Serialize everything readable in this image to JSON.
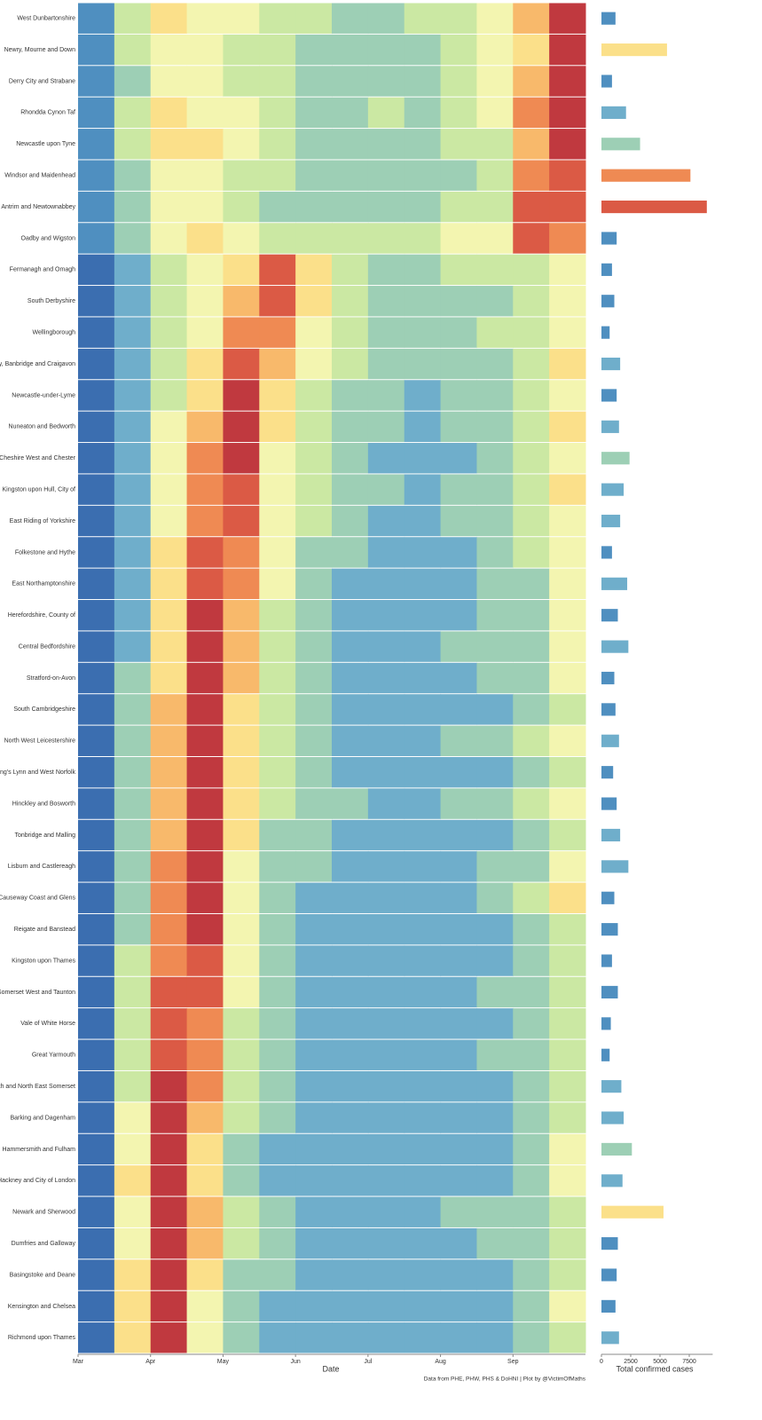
{
  "chart_data": [
    {
      "type": "heatmap",
      "x": [
        "Mar",
        null,
        "Apr",
        null,
        "May",
        null,
        "Jun",
        null,
        "Jul",
        null,
        "Aug",
        null,
        "Sep",
        null
      ],
      "rows": [
        "West Dunbartonshire",
        "Newry, Mourne and Down",
        "Derry City and Strabane",
        "Rhondda Cynon Taf",
        "Newcastle upon Tyne",
        "Windsor and Maidenhead",
        "Antrim and Newtownabbey",
        "Oadby and Wigston",
        "Fermanagh and Omagh",
        "South Derbyshire",
        "Wellingborough",
        "Armagh City, Banbridge and Craigavon",
        "Newcastle-under-Lyme",
        "Nuneaton and Bedworth",
        "Cheshire West and Chester",
        "Kingston upon Hull, City of",
        "East Riding of Yorkshire",
        "Folkestone and Hythe",
        "East Northamptonshire",
        "Herefordshire, County of",
        "Central Bedfordshire",
        "Stratford-on-Avon",
        "South Cambridgeshire",
        "North West Leicestershire",
        "King's Lynn and West Norfolk",
        "Hinckley and Bosworth",
        "Tonbridge and Malling",
        "Lisburn and Castlereagh",
        "Causeway Coast and Glens",
        "Reigate and Banstead",
        "Kingston upon Thames",
        "Somerset West and Taunton",
        "Vale of White Horse",
        "Great Yarmouth",
        "Bath and North East Somerset",
        "Barking and Dagenham",
        "Hammersmith and Fulham",
        "Hackney and City of London",
        "Newark and Sherwood",
        "Dumfries and Galloway",
        "Basingstoke and Deane",
        "Kensington and Chelsea",
        "Richmond upon Thames"
      ],
      "values": [
        [
          1,
          4,
          6,
          5,
          5,
          4,
          4,
          3,
          3,
          4,
          4,
          5,
          7,
          10
        ],
        [
          1,
          4,
          5,
          5,
          4,
          4,
          3,
          3,
          3,
          3,
          4,
          5,
          6,
          10
        ],
        [
          1,
          3,
          5,
          5,
          4,
          4,
          3,
          3,
          3,
          3,
          4,
          5,
          7,
          10
        ],
        [
          1,
          4,
          6,
          5,
          5,
          4,
          3,
          3,
          4,
          3,
          4,
          5,
          8,
          10
        ],
        [
          1,
          4,
          6,
          6,
          5,
          4,
          3,
          3,
          3,
          3,
          4,
          4,
          7,
          10
        ],
        [
          1,
          3,
          5,
          5,
          4,
          4,
          3,
          3,
          3,
          3,
          3,
          4,
          8,
          9
        ],
        [
          1,
          3,
          5,
          5,
          4,
          3,
          3,
          3,
          3,
          3,
          4,
          4,
          9,
          9
        ],
        [
          1,
          3,
          5,
          6,
          5,
          4,
          4,
          4,
          4,
          4,
          5,
          5,
          9,
          8
        ],
        [
          0,
          2,
          4,
          5,
          6,
          9,
          6,
          4,
          3,
          3,
          4,
          4,
          4,
          5
        ],
        [
          0,
          2,
          4,
          5,
          7,
          9,
          6,
          4,
          3,
          3,
          3,
          3,
          4,
          5
        ],
        [
          0,
          2,
          4,
          5,
          8,
          8,
          5,
          4,
          3,
          3,
          3,
          4,
          4,
          5
        ],
        [
          0,
          2,
          4,
          6,
          9,
          7,
          5,
          4,
          3,
          3,
          3,
          3,
          4,
          6
        ],
        [
          0,
          2,
          4,
          6,
          10,
          6,
          4,
          3,
          3,
          2,
          3,
          3,
          4,
          5
        ],
        [
          0,
          2,
          5,
          7,
          10,
          6,
          4,
          3,
          3,
          2,
          3,
          3,
          4,
          6
        ],
        [
          0,
          2,
          5,
          8,
          10,
          5,
          4,
          3,
          2,
          2,
          2,
          3,
          4,
          5
        ],
        [
          0,
          2,
          5,
          8,
          9,
          5,
          4,
          3,
          3,
          2,
          3,
          3,
          4,
          6
        ],
        [
          0,
          2,
          5,
          8,
          9,
          5,
          4,
          3,
          2,
          2,
          3,
          3,
          4,
          5
        ],
        [
          0,
          2,
          6,
          9,
          8,
          5,
          3,
          3,
          2,
          2,
          2,
          3,
          4,
          5
        ],
        [
          0,
          2,
          6,
          9,
          8,
          5,
          3,
          2,
          2,
          2,
          2,
          3,
          3,
          5
        ],
        [
          0,
          2,
          6,
          10,
          7,
          4,
          3,
          2,
          2,
          2,
          2,
          3,
          3,
          5
        ],
        [
          0,
          2,
          6,
          10,
          7,
          4,
          3,
          2,
          2,
          2,
          3,
          3,
          3,
          5
        ],
        [
          0,
          3,
          6,
          10,
          7,
          4,
          3,
          2,
          2,
          2,
          2,
          3,
          3,
          5
        ],
        [
          0,
          3,
          7,
          10,
          6,
          4,
          3,
          2,
          2,
          2,
          2,
          2,
          3,
          4
        ],
        [
          0,
          3,
          7,
          10,
          6,
          4,
          3,
          2,
          2,
          2,
          3,
          3,
          4,
          5
        ],
        [
          0,
          3,
          7,
          10,
          6,
          4,
          3,
          2,
          2,
          2,
          2,
          2,
          3,
          4
        ],
        [
          0,
          3,
          7,
          10,
          6,
          4,
          3,
          3,
          2,
          2,
          3,
          3,
          4,
          5
        ],
        [
          0,
          3,
          7,
          10,
          6,
          3,
          3,
          2,
          2,
          2,
          2,
          2,
          3,
          4
        ],
        [
          0,
          3,
          8,
          10,
          5,
          3,
          3,
          2,
          2,
          2,
          2,
          3,
          3,
          5
        ],
        [
          0,
          3,
          8,
          10,
          5,
          3,
          2,
          2,
          2,
          2,
          2,
          3,
          4,
          6
        ],
        [
          0,
          3,
          8,
          10,
          5,
          3,
          2,
          2,
          2,
          2,
          2,
          2,
          3,
          4
        ],
        [
          0,
          4,
          8,
          9,
          5,
          3,
          2,
          2,
          2,
          2,
          2,
          2,
          3,
          4
        ],
        [
          0,
          4,
          9,
          9,
          5,
          3,
          2,
          2,
          2,
          2,
          2,
          3,
          3,
          4
        ],
        [
          0,
          4,
          9,
          8,
          4,
          3,
          2,
          2,
          2,
          2,
          2,
          2,
          3,
          4
        ],
        [
          0,
          4,
          9,
          8,
          4,
          3,
          2,
          2,
          2,
          2,
          2,
          3,
          3,
          4
        ],
        [
          0,
          4,
          10,
          8,
          4,
          3,
          2,
          2,
          2,
          2,
          2,
          2,
          3,
          4
        ],
        [
          0,
          5,
          10,
          7,
          4,
          3,
          2,
          2,
          2,
          2,
          2,
          2,
          3,
          4
        ],
        [
          0,
          5,
          10,
          6,
          3,
          2,
          2,
          2,
          2,
          2,
          2,
          2,
          3,
          5
        ],
        [
          0,
          6,
          10,
          6,
          3,
          2,
          2,
          2,
          2,
          2,
          2,
          2,
          3,
          5
        ],
        [
          0,
          5,
          10,
          7,
          4,
          3,
          2,
          2,
          2,
          2,
          3,
          3,
          3,
          4
        ],
        [
          0,
          5,
          10,
          7,
          4,
          3,
          2,
          2,
          2,
          2,
          2,
          3,
          3,
          4
        ],
        [
          0,
          6,
          10,
          6,
          3,
          3,
          2,
          2,
          2,
          2,
          2,
          2,
          3,
          4
        ],
        [
          0,
          6,
          10,
          5,
          3,
          2,
          2,
          2,
          2,
          2,
          2,
          2,
          3,
          5
        ],
        [
          0,
          6,
          10,
          5,
          3,
          2,
          2,
          2,
          2,
          2,
          2,
          2,
          3,
          4
        ]
      ],
      "colorscale": [
        "#3b6eb0",
        "#4f8fc0",
        "#6faecb",
        "#9dcfb5",
        "#cbe8a3",
        "#f3f5b0",
        "#fbe08a",
        "#f8b96b",
        "#ef8a53",
        "#db5a45",
        "#c0393f"
      ],
      "xlabel": "Date",
      "caption": "Data from PHE, PHW, PHS & DoHNI | Plot by @VictimOfMaths"
    },
    {
      "type": "bar",
      "values": [
        1200,
        5600,
        900,
        2100,
        3300,
        7600,
        9000,
        1300,
        900,
        1100,
        700,
        1600,
        1300,
        1500,
        2400,
        1900,
        1600,
        900,
        2200,
        1400,
        2300,
        1100,
        1200,
        1500,
        1000,
        1300,
        1600,
        2300,
        1100,
        1400,
        900,
        1400,
        800,
        700,
        1700,
        1900,
        2600,
        1800,
        5300,
        1400,
        1300,
        1200,
        1500
      ],
      "xlim": [
        0,
        9500
      ],
      "xticks": [
        0,
        2500,
        5000,
        7500
      ],
      "xlabel": "Total confirmed cases"
    }
  ]
}
